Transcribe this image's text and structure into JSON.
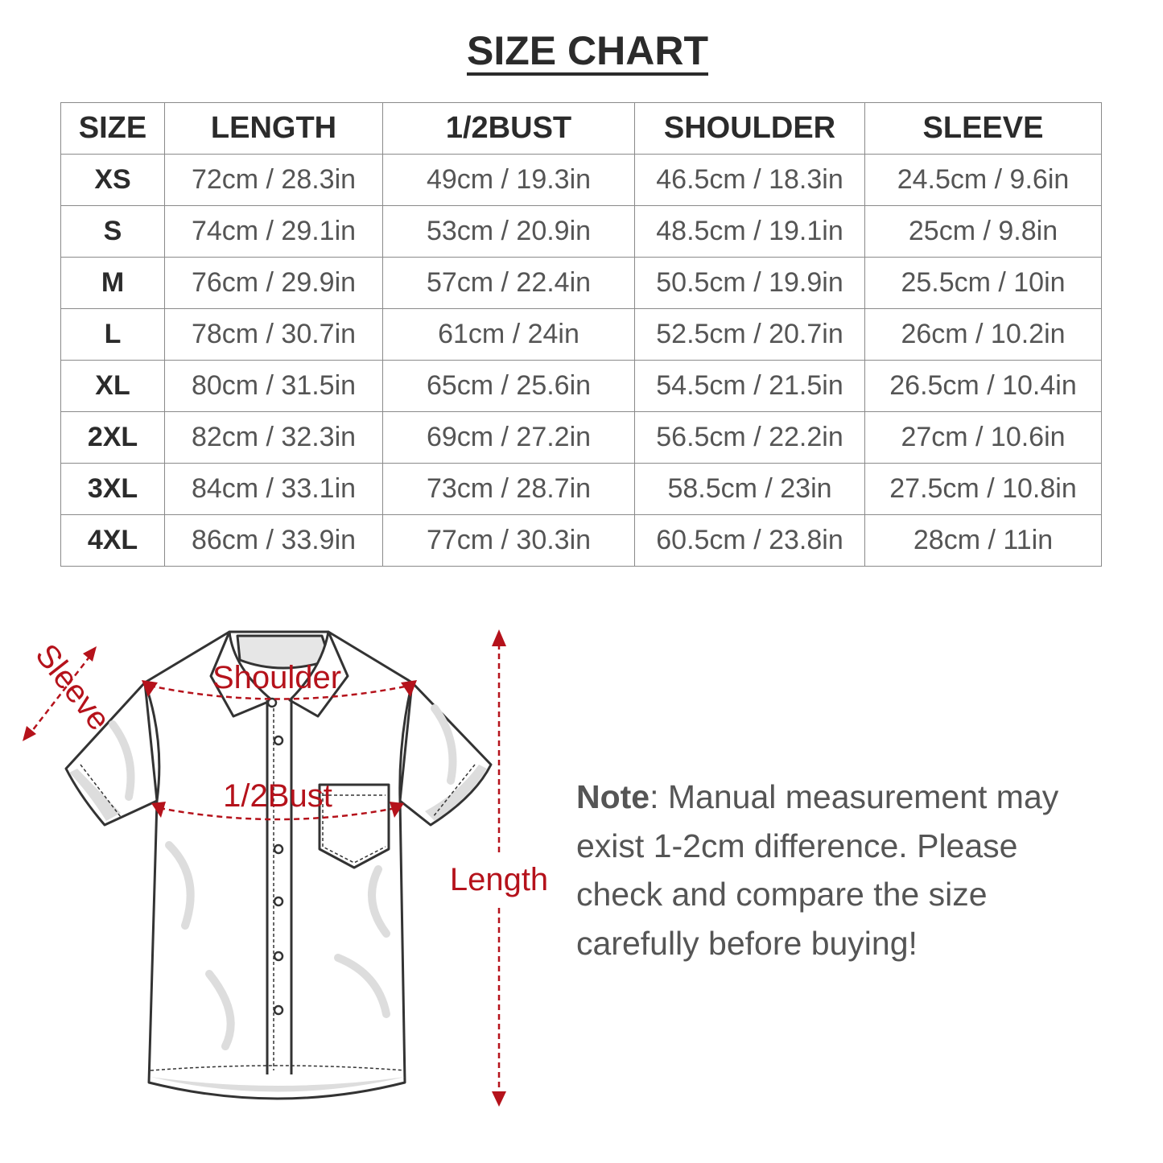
{
  "title": "SIZE CHART",
  "table": {
    "headers": [
      "SIZE",
      "LENGTH",
      "1/2BUST",
      "SHOULDER",
      "SLEEVE"
    ],
    "rows": [
      [
        "XS",
        "72cm / 28.3in",
        "49cm / 19.3in",
        "46.5cm / 18.3in",
        "24.5cm / 9.6in"
      ],
      [
        "S",
        "74cm / 29.1in",
        "53cm / 20.9in",
        "48.5cm / 19.1in",
        "25cm / 9.8in"
      ],
      [
        "M",
        "76cm / 29.9in",
        "57cm / 22.4in",
        "50.5cm / 19.9in",
        "25.5cm / 10in"
      ],
      [
        "L",
        "78cm / 30.7in",
        "61cm / 24in",
        "52.5cm / 20.7in",
        "26cm / 10.2in"
      ],
      [
        "XL",
        "80cm / 31.5in",
        "65cm / 25.6in",
        "54.5cm / 21.5in",
        "26.5cm / 10.4in"
      ],
      [
        "2XL",
        "82cm / 32.3in",
        "69cm / 27.2in",
        "56.5cm / 22.2in",
        "27cm / 10.6in"
      ],
      [
        "3XL",
        "84cm / 33.1in",
        "73cm / 28.7in",
        "58.5cm / 23in",
        "27.5cm / 10.8in"
      ],
      [
        "4XL",
        "86cm / 33.9in",
        "77cm / 30.3in",
        "60.5cm / 23.8in",
        "28cm / 11in"
      ]
    ]
  },
  "diagram": {
    "labels": {
      "sleeve": "Sleeve",
      "shoulder": "Shoulder",
      "bust": "1/2Bust",
      "length": "Length"
    },
    "accent_color": "#b5121b"
  },
  "note": {
    "label": "Note",
    "text": ": Manual measurement may exist 1-2cm difference. Please check and compare the size carefully before buying!"
  }
}
